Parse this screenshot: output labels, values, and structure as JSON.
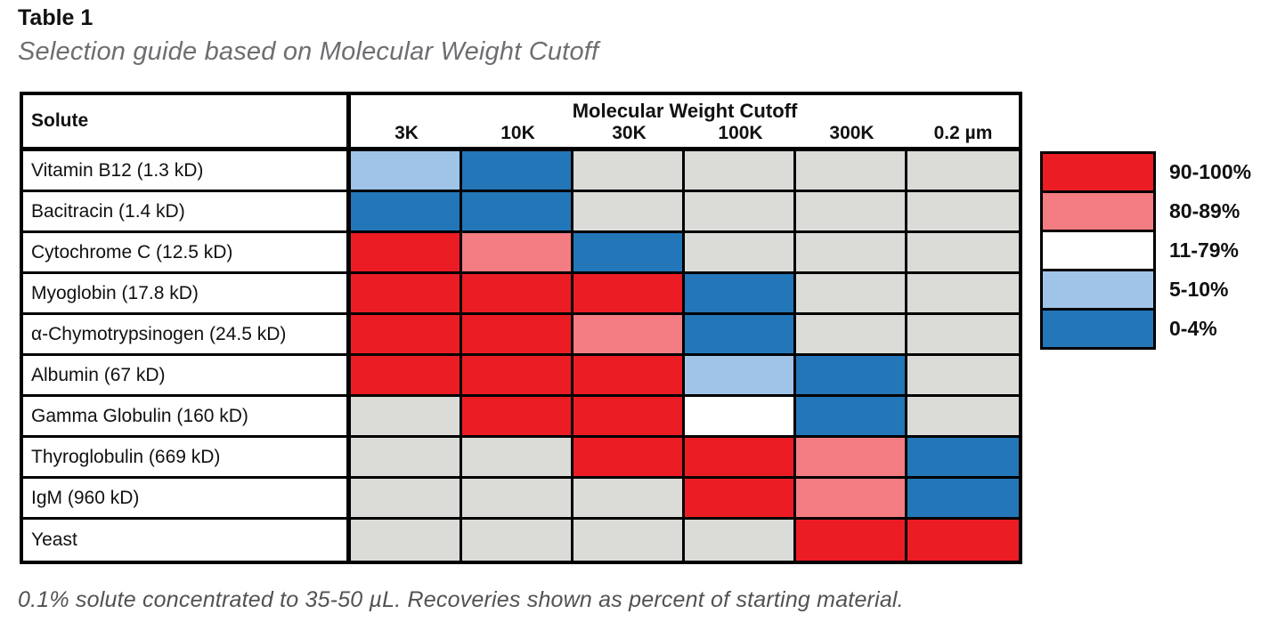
{
  "page": {
    "title": "Table 1",
    "subtitle": "Selection guide based on Molecular Weight Cutoff",
    "footnote": "0.1% solute concentrated to 35-50 µL. Recoveries shown as percent of starting material."
  },
  "table": {
    "solute_header": "Solute",
    "group_header": "Molecular Weight Cutoff",
    "columns": [
      "3K",
      "10K",
      "30K",
      "100K",
      "300K",
      "0.2 µm"
    ],
    "rows": [
      {
        "label": "Vitamin B12 (1.3 kD)",
        "cells": [
          "5-10%",
          "0-4%",
          null,
          null,
          null,
          null
        ]
      },
      {
        "label": "Bacitracin (1.4 kD)",
        "cells": [
          "0-4%",
          "0-4%",
          null,
          null,
          null,
          null
        ]
      },
      {
        "label": "Cytochrome C (12.5 kD)",
        "cells": [
          "90-100%",
          "80-89%",
          "0-4%",
          null,
          null,
          null
        ]
      },
      {
        "label": "Myoglobin (17.8 kD)",
        "cells": [
          "90-100%",
          "90-100%",
          "90-100%",
          "0-4%",
          null,
          null
        ]
      },
      {
        "label": "α-Chymotrypsinogen (24.5 kD)",
        "cells": [
          "90-100%",
          "90-100%",
          "80-89%",
          "0-4%",
          null,
          null
        ]
      },
      {
        "label": "Albumin (67 kD)",
        "cells": [
          "90-100%",
          "90-100%",
          "90-100%",
          "5-10%",
          "0-4%",
          null
        ]
      },
      {
        "label": "Gamma Globulin (160 kD)",
        "cells": [
          null,
          "90-100%",
          "90-100%",
          "11-79%",
          "0-4%",
          null
        ]
      },
      {
        "label": "Thyroglobulin (669 kD)",
        "cells": [
          null,
          null,
          "90-100%",
          "90-100%",
          "80-89%",
          "0-4%"
        ]
      },
      {
        "label": "IgM (960 kD)",
        "cells": [
          null,
          null,
          null,
          "90-100%",
          "80-89%",
          "0-4%"
        ]
      },
      {
        "label": "Yeast",
        "cells": [
          null,
          null,
          null,
          null,
          "90-100%",
          "90-100%"
        ]
      }
    ]
  },
  "legend": {
    "items": [
      {
        "label": "90-100%",
        "color": "#EC1C24"
      },
      {
        "label": "80-89%",
        "color": "#F47C83"
      },
      {
        "label": "11-79%",
        "color": "#FFFFFF"
      },
      {
        "label": "5-10%",
        "color": "#9FC4E8"
      },
      {
        "label": "0-4%",
        "color": "#2376B8"
      }
    ],
    "empty_cell_color": "#DBDCD8"
  },
  "chart_data": {
    "type": "heatmap",
    "title": "Table 1",
    "subtitle": "Selection guide based on Molecular Weight Cutoff",
    "x_categories": [
      "3K",
      "10K",
      "30K",
      "100K",
      "300K",
      "0.2 µm"
    ],
    "xlabel": "Molecular Weight Cutoff",
    "y_categories": [
      "Vitamin B12 (1.3 kD)",
      "Bacitracin (1.4 kD)",
      "Cytochrome C (12.5 kD)",
      "Myoglobin (17.8 kD)",
      "α-Chymotrypsinogen (24.5 kD)",
      "Albumin (67 kD)",
      "Gamma Globulin (160 kD)",
      "Thyroglobulin (669 kD)",
      "IgM (960 kD)",
      "Yeast"
    ],
    "ylabel": "Solute",
    "values": [
      [
        "5-10%",
        "0-4%",
        null,
        null,
        null,
        null
      ],
      [
        "0-4%",
        "0-4%",
        null,
        null,
        null,
        null
      ],
      [
        "90-100%",
        "80-89%",
        "0-4%",
        null,
        null,
        null
      ],
      [
        "90-100%",
        "90-100%",
        "90-100%",
        "0-4%",
        null,
        null
      ],
      [
        "90-100%",
        "90-100%",
        "80-89%",
        "0-4%",
        null,
        null
      ],
      [
        "90-100%",
        "90-100%",
        "90-100%",
        "5-10%",
        "0-4%",
        null
      ],
      [
        null,
        "90-100%",
        "90-100%",
        "11-79%",
        "0-4%",
        null
      ],
      [
        null,
        null,
        "90-100%",
        "90-100%",
        "80-89%",
        "0-4%"
      ],
      [
        null,
        null,
        null,
        "90-100%",
        "80-89%",
        "0-4%"
      ],
      [
        null,
        null,
        null,
        null,
        "90-100%",
        "90-100%"
      ]
    ],
    "legend": [
      {
        "label": "90-100%",
        "color": "#EC1C24"
      },
      {
        "label": "80-89%",
        "color": "#F47C83"
      },
      {
        "label": "11-79%",
        "color": "#FFFFFF"
      },
      {
        "label": "5-10%",
        "color": "#9FC4E8"
      },
      {
        "label": "0-4%",
        "color": "#2376B8"
      }
    ],
    "legend_position": "right",
    "annotation": "0.1% solute concentrated to 35-50 µL. Recoveries shown as percent of starting material."
  }
}
